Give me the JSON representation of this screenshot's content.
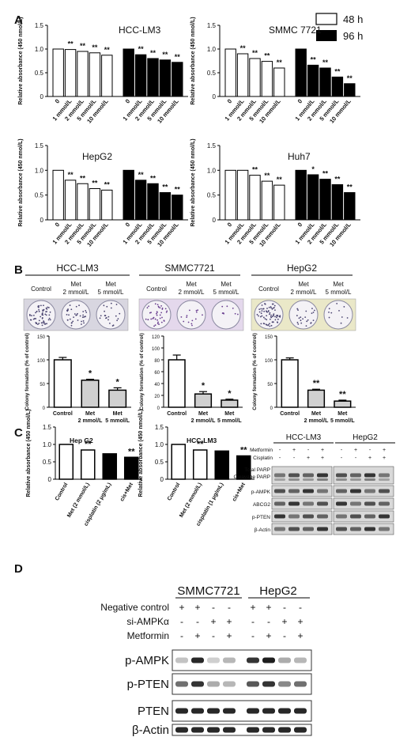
{
  "figure": {
    "panel_labels": [
      "A",
      "B",
      "C",
      "D"
    ]
  },
  "legend": {
    "items": [
      {
        "label": "48 h",
        "color": "#ffffff"
      },
      {
        "label": "96 h",
        "color": "#000000"
      }
    ]
  },
  "chart_data": [
    {
      "type": "bar",
      "title": "HCC-LM3",
      "ylabel": "Relative absorbance (450 nmol/L)",
      "ylim": [
        0,
        1.5
      ],
      "yticks": [
        "0",
        "0.5",
        "1.0",
        "1.5"
      ],
      "categories": [
        "0",
        "1 mmol/L",
        "2 mmol/L",
        "5 mmol/L",
        "10 mmol/L"
      ],
      "series": [
        {
          "name": "48 h",
          "values": [
            1.0,
            0.99,
            0.95,
            0.92,
            0.87
          ],
          "sig": [
            "",
            "**",
            "**",
            "**",
            "**"
          ],
          "color": "#ffffff"
        },
        {
          "name": "96 h",
          "values": [
            1.0,
            0.88,
            0.8,
            0.77,
            0.72
          ],
          "sig": [
            "",
            "**",
            "**",
            "**",
            "**"
          ],
          "color": "#000000"
        }
      ]
    },
    {
      "type": "bar",
      "title": "SMMC 7721",
      "ylabel": "Relative absorbance (450 nmol/L)",
      "ylim": [
        0,
        1.5
      ],
      "yticks": [
        "0",
        "0.5",
        "1.0",
        "1.5"
      ],
      "categories": [
        "0",
        "1 mmol/L",
        "2 mmol/L",
        "5 mmol/L",
        "10 mmol/L"
      ],
      "series": [
        {
          "name": "48 h",
          "values": [
            1.0,
            0.9,
            0.8,
            0.74,
            0.6
          ],
          "sig": [
            "",
            "**",
            "**",
            "**",
            "**"
          ],
          "color": "#ffffff"
        },
        {
          "name": "96 h",
          "values": [
            1.0,
            0.66,
            0.6,
            0.41,
            0.27
          ],
          "sig": [
            "",
            "**",
            "**",
            "**",
            "**"
          ],
          "color": "#000000"
        }
      ]
    },
    {
      "type": "bar",
      "title": "HepG2",
      "ylabel": "Relative absorbance (450 nmol/L)",
      "ylim": [
        0,
        1.5
      ],
      "yticks": [
        "0",
        "0.5",
        "1.0",
        "1.5"
      ],
      "categories": [
        "0",
        "1 mmol/L",
        "2 mmol/L",
        "5 mmol/L",
        "10 mmol/L"
      ],
      "series": [
        {
          "name": "48 h",
          "values": [
            1.0,
            0.8,
            0.73,
            0.63,
            0.6
          ],
          "sig": [
            "",
            "**",
            "**",
            "**",
            "**"
          ],
          "color": "#ffffff"
        },
        {
          "name": "96 h",
          "values": [
            1.0,
            0.8,
            0.73,
            0.55,
            0.5
          ],
          "sig": [
            "",
            "**",
            "**",
            "**",
            "**"
          ],
          "color": "#000000"
        }
      ]
    },
    {
      "type": "bar",
      "title": "Huh7",
      "ylabel": "Relative absorbance (450 nmol/L)",
      "ylim": [
        0,
        1.5
      ],
      "yticks": [
        "0",
        "0.5",
        "1.0",
        "1.5"
      ],
      "categories": [
        "0",
        "1 mmol/L",
        "2 mmol/L",
        "5 mmol/L",
        "10 mmol/L"
      ],
      "series": [
        {
          "name": "48 h",
          "values": [
            1.0,
            1.0,
            0.9,
            0.78,
            0.7
          ],
          "sig": [
            "",
            "",
            "**",
            "**",
            "**"
          ],
          "color": "#ffffff"
        },
        {
          "name": "96 h",
          "values": [
            1.0,
            0.91,
            0.82,
            0.71,
            0.55
          ],
          "sig": [
            "",
            "*",
            "**",
            "**",
            "**"
          ],
          "color": "#000000"
        }
      ]
    },
    {
      "type": "bar",
      "title": "HCC-LM3",
      "ylabel": "Colony formation (% of control)",
      "ylim": [
        0,
        150
      ],
      "yticks": [
        "0",
        "50",
        "100",
        "150"
      ],
      "categories": [
        "Control",
        "Met 2 mmol/L",
        "Met 5 mmol/L"
      ],
      "values": [
        100,
        57,
        36
      ],
      "errors": [
        5,
        2,
        5
      ],
      "sig": [
        "",
        "*",
        "*"
      ],
      "colors": [
        "#ffffff",
        "#d0d0d0",
        "#d0d0d0"
      ],
      "header": "HCC-LM3",
      "plate_labels": [
        "Control",
        "Met 2 mmol/L",
        "Met 5 mmol/L"
      ]
    },
    {
      "type": "bar",
      "title": "SMMC7721",
      "ylabel": "Colony formation (% of control)",
      "ylim": [
        0,
        150
      ],
      "yticks": [
        "0",
        "20",
        "40",
        "60",
        "80",
        "100",
        "120"
      ],
      "categories": [
        "Control",
        "Met 2 mmol/L",
        "Met 5 mmol/L"
      ],
      "values": [
        100,
        28,
        15
      ],
      "errors": [
        10,
        5,
        2
      ],
      "sig": [
        "",
        "*",
        "*"
      ],
      "colors": [
        "#ffffff",
        "#d0d0d0",
        "#d0d0d0"
      ],
      "header": "SMMC7721",
      "plate_labels": [
        "Control",
        "Met 2 mmol/L",
        "Met 5 mmol/L"
      ]
    },
    {
      "type": "bar",
      "title": "HepG2",
      "ylabel": "Colony formation (% of control)",
      "ylim": [
        0,
        150
      ],
      "yticks": [
        "0",
        "50",
        "100",
        "150"
      ],
      "categories": [
        "Control",
        "Met 2 mmol/L",
        "Met 5 mmol/L"
      ],
      "values": [
        100,
        36,
        13
      ],
      "errors": [
        4,
        2,
        2
      ],
      "sig": [
        "",
        "**",
        "**"
      ],
      "colors": [
        "#ffffff",
        "#d0d0d0",
        "#d0d0d0"
      ],
      "header": "HepG2",
      "plate_labels": [
        "Control",
        "Met 2 mmol/L",
        "Met 5 mmol/L"
      ]
    },
    {
      "type": "bar",
      "title": "Hep G2",
      "ylabel": "Relative absorbance (450 nmol/L)",
      "ylim": [
        0,
        1.5
      ],
      "yticks": [
        "0",
        "0.5",
        "1.0",
        "1.5"
      ],
      "categories": [
        "Control",
        "Met (2 mmol/L)",
        "cisplatin (2 μg/mL)",
        "cis+Met"
      ],
      "values": [
        1.0,
        0.84,
        0.73,
        0.63
      ],
      "sig": [
        "",
        "**",
        "",
        "**"
      ],
      "colors": [
        "#ffffff",
        "#ffffff",
        "#000000",
        "#000000"
      ]
    },
    {
      "type": "bar",
      "title": "HCC-LM3",
      "ylabel": "Relative absorbance (450 nmol/L)",
      "ylim": [
        0,
        1.5
      ],
      "yticks": [
        "0",
        "0.5",
        "1.0",
        "1.5"
      ],
      "categories": [
        "Control",
        "Met (2 mmol/L)",
        "cisplatin (1 μg/mL)",
        "cis+Met"
      ],
      "values": [
        1.0,
        0.84,
        0.81,
        0.67
      ],
      "sig": [
        "",
        "**",
        "",
        "**"
      ],
      "colors": [
        "#ffffff",
        "#ffffff",
        "#000000",
        "#000000"
      ]
    }
  ],
  "western_c": {
    "groups": [
      "HCC-LM3",
      "HepG2"
    ],
    "row_labels": [
      "Metformin",
      "Cisplatin"
    ],
    "signs": [
      [
        "-",
        "+",
        "-",
        "+"
      ],
      [
        "-",
        "-",
        "+",
        "+"
      ]
    ],
    "blots": [
      "Total PARP",
      "Cleavage PARP",
      "p-AMPK",
      "ABCG2",
      "p-PTEN",
      "β-Actin"
    ]
  },
  "western_d": {
    "groups": [
      "SMMC7721",
      "HepG2"
    ],
    "row_labels": [
      "Negative control",
      "si-AMPKα",
      "Metformin"
    ],
    "signs": [
      [
        "+",
        "+",
        "-",
        "-",
        "+",
        "+",
        "-",
        "-"
      ],
      [
        "-",
        "-",
        "+",
        "+",
        "-",
        "-",
        "+",
        "+"
      ],
      [
        "-",
        "+",
        "-",
        "+",
        "-",
        "+",
        "-",
        "+"
      ]
    ],
    "blots": [
      "p-AMPK",
      "p-PTEN",
      "PTEN",
      "β-Actin"
    ]
  }
}
